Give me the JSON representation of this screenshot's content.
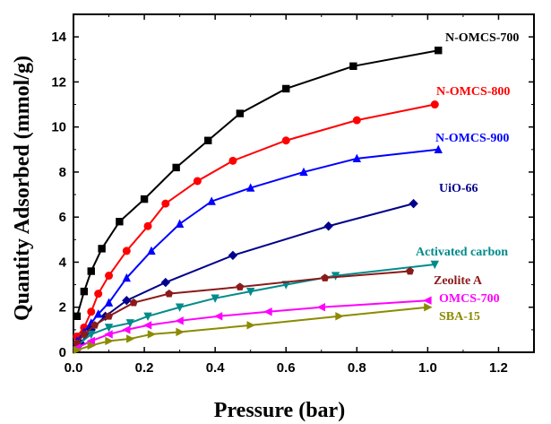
{
  "chart_data": {
    "type": "line",
    "title": "",
    "xlabel": "Pressure (bar)",
    "ylabel": "Quantity Adsorbed (mmol/g)",
    "xlim": [
      0.0,
      1.3
    ],
    "ylim": [
      0,
      15
    ],
    "xticks": [
      "0.0",
      "0.2",
      "0.4",
      "0.6",
      "0.8",
      "1.0",
      "1.2"
    ],
    "yticks": [
      "0",
      "2",
      "4",
      "6",
      "8",
      "10",
      "12",
      "14"
    ],
    "grid": false,
    "legend": "inline labels at right",
    "series": [
      {
        "name": "N-OMCS-700",
        "color": "#000000",
        "marker": "square",
        "x": [
          0.01,
          0.03,
          0.05,
          0.08,
          0.13,
          0.2,
          0.29,
          0.38,
          0.47,
          0.6,
          0.79,
          1.03
        ],
        "y": [
          1.6,
          2.7,
          3.6,
          4.6,
          5.8,
          6.8,
          8.2,
          9.4,
          10.6,
          11.7,
          12.7,
          13.4
        ]
      },
      {
        "name": "N-OMCS-800",
        "color": "#ff0000",
        "marker": "circle",
        "x": [
          0.01,
          0.03,
          0.05,
          0.07,
          0.1,
          0.15,
          0.21,
          0.26,
          0.35,
          0.45,
          0.6,
          0.8,
          1.02
        ],
        "y": [
          0.7,
          1.1,
          1.8,
          2.6,
          3.4,
          4.5,
          5.6,
          6.6,
          7.6,
          8.5,
          9.4,
          10.3,
          11.0
        ]
      },
      {
        "name": "N-OMCS-900",
        "color": "#0000ff",
        "marker": "triangle-up",
        "x": [
          0.01,
          0.03,
          0.05,
          0.07,
          0.1,
          0.15,
          0.22,
          0.3,
          0.39,
          0.5,
          0.65,
          0.8,
          1.03
        ],
        "y": [
          0.5,
          0.9,
          1.3,
          1.7,
          2.2,
          3.3,
          4.5,
          5.7,
          6.7,
          7.3,
          8.0,
          8.6,
          9.0
        ]
      },
      {
        "name": "UiO-66",
        "color": "#00008b",
        "marker": "diamond",
        "x": [
          0.02,
          0.05,
          0.09,
          0.15,
          0.26,
          0.45,
          0.72,
          0.96
        ],
        "y": [
          0.4,
          1.0,
          1.6,
          2.3,
          3.1,
          4.3,
          5.6,
          6.6
        ]
      },
      {
        "name": "Activated carbon",
        "color": "#008b8b",
        "marker": "triangle-down",
        "x": [
          0.01,
          0.05,
          0.1,
          0.16,
          0.21,
          0.3,
          0.4,
          0.5,
          0.6,
          0.74,
          1.02
        ],
        "y": [
          0.3,
          0.8,
          1.1,
          1.3,
          1.6,
          2.0,
          2.4,
          2.7,
          3.0,
          3.4,
          3.9
        ]
      },
      {
        "name": "Zeolite A",
        "color": "#8b1a1a",
        "marker": "pentagon",
        "x": [
          0.01,
          0.03,
          0.06,
          0.1,
          0.17,
          0.27,
          0.47,
          0.71,
          0.95
        ],
        "y": [
          0.4,
          0.8,
          1.2,
          1.6,
          2.2,
          2.6,
          2.9,
          3.3,
          3.6
        ]
      },
      {
        "name": "OMCS-700",
        "color": "#ff00ff",
        "marker": "triangle-left",
        "x": [
          0.01,
          0.05,
          0.1,
          0.15,
          0.21,
          0.3,
          0.41,
          0.55,
          0.7,
          1.0
        ],
        "y": [
          0.2,
          0.5,
          0.8,
          1.0,
          1.2,
          1.4,
          1.6,
          1.8,
          2.0,
          2.3
        ]
      },
      {
        "name": "SBA-15",
        "color": "#8b8b00",
        "marker": "triangle-right",
        "x": [
          0.01,
          0.05,
          0.1,
          0.16,
          0.22,
          0.3,
          0.5,
          0.75,
          1.0
        ],
        "y": [
          0.1,
          0.3,
          0.5,
          0.6,
          0.8,
          0.9,
          1.2,
          1.6,
          2.0
        ]
      }
    ]
  }
}
